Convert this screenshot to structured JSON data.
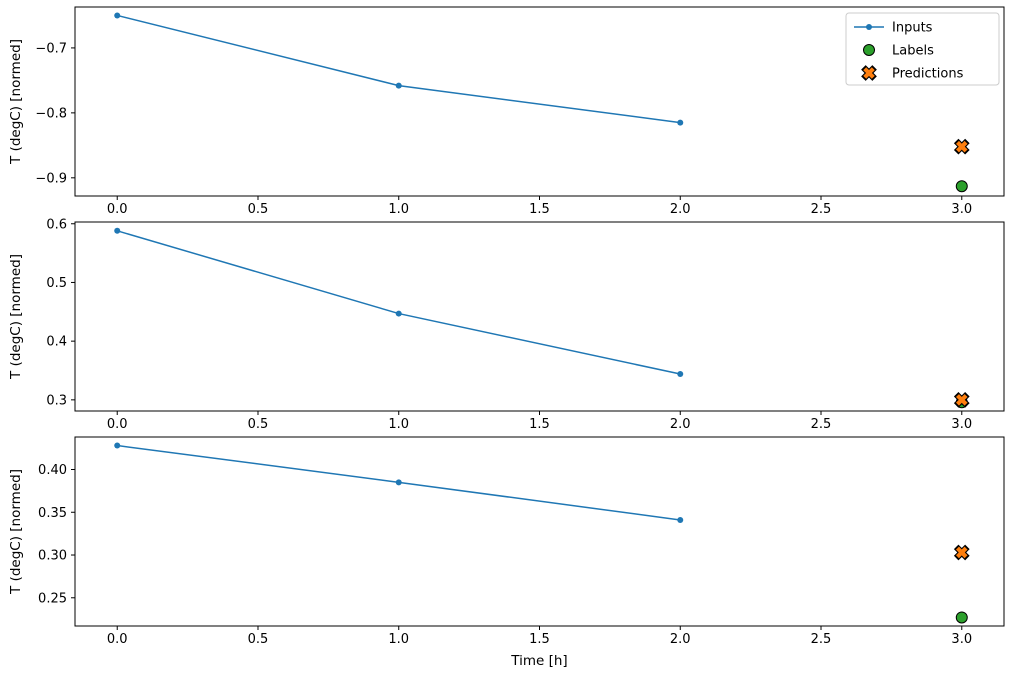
{
  "figure": {
    "background": "#ffffff",
    "xlabel": "Time [h]",
    "ylabel": "T (degC) [normed]",
    "colors": {
      "inputs": "#1f77b4",
      "labels": "#2ca02c",
      "predictions": "#ff7f0e",
      "marker_edge": "#000000",
      "axis": "#000000",
      "legend_border": "#cccccc"
    }
  },
  "legend": {
    "position": "upper-right",
    "entries": [
      {
        "label": "Inputs",
        "marker": "line-dot",
        "color": "#1f77b4"
      },
      {
        "label": "Labels",
        "marker": "circle",
        "color": "#2ca02c"
      },
      {
        "label": "Predictions",
        "marker": "X",
        "color": "#ff7f0e"
      }
    ]
  },
  "chart_data": [
    {
      "type": "line",
      "title": "",
      "xlabel": "",
      "ylabel": "T (degC) [normed]",
      "xlim": [
        -0.15,
        3.15
      ],
      "ylim": [
        -0.928,
        -0.637
      ],
      "xticks": [
        0.0,
        0.5,
        1.0,
        1.5,
        2.0,
        2.5,
        3.0
      ],
      "xtick_labels": [
        "0.0",
        "0.5",
        "1.0",
        "1.5",
        "2.0",
        "2.5",
        "3.0"
      ],
      "yticks": [
        -0.7,
        -0.8,
        -0.9
      ],
      "ytick_labels": [
        "−0.7",
        "−0.8",
        "−0.9"
      ],
      "grid": false,
      "legend": true,
      "series": [
        {
          "name": "Inputs",
          "type": "line",
          "x": [
            0,
            1,
            2
          ],
          "y": [
            -0.65,
            -0.758,
            -0.815
          ]
        },
        {
          "name": "Labels",
          "type": "scatter",
          "x": [
            3
          ],
          "y": [
            -0.913
          ]
        },
        {
          "name": "Predictions",
          "type": "scatter",
          "x": [
            3
          ],
          "y": [
            -0.852
          ]
        }
      ]
    },
    {
      "type": "line",
      "title": "",
      "xlabel": "",
      "ylabel": "T (degC) [normed]",
      "xlim": [
        -0.15,
        3.15
      ],
      "ylim": [
        0.281,
        0.603
      ],
      "xticks": [
        0.0,
        0.5,
        1.0,
        1.5,
        2.0,
        2.5,
        3.0
      ],
      "xtick_labels": [
        "0.0",
        "0.5",
        "1.0",
        "1.5",
        "2.0",
        "2.5",
        "3.0"
      ],
      "yticks": [
        0.3,
        0.4,
        0.5,
        0.6
      ],
      "ytick_labels": [
        "0.3",
        "0.4",
        "0.5",
        "0.6"
      ],
      "grid": false,
      "legend": false,
      "series": [
        {
          "name": "Inputs",
          "type": "line",
          "x": [
            0,
            1,
            2
          ],
          "y": [
            0.588,
            0.447,
            0.344
          ]
        },
        {
          "name": "Labels",
          "type": "scatter",
          "x": [
            3
          ],
          "y": [
            0.296
          ]
        },
        {
          "name": "Predictions",
          "type": "scatter",
          "x": [
            3
          ],
          "y": [
            0.3
          ]
        }
      ]
    },
    {
      "type": "line",
      "title": "",
      "xlabel": "Time [h]",
      "ylabel": "T (degC) [normed]",
      "xlim": [
        -0.15,
        3.15
      ],
      "ylim": [
        0.217,
        0.438
      ],
      "xticks": [
        0.0,
        0.5,
        1.0,
        1.5,
        2.0,
        2.5,
        3.0
      ],
      "xtick_labels": [
        "0.0",
        "0.5",
        "1.0",
        "1.5",
        "2.0",
        "2.5",
        "3.0"
      ],
      "yticks": [
        0.25,
        0.3,
        0.35,
        0.4
      ],
      "ytick_labels": [
        "0.25",
        "0.30",
        "0.35",
        "0.40"
      ],
      "grid": false,
      "legend": false,
      "series": [
        {
          "name": "Inputs",
          "type": "line",
          "x": [
            0,
            1,
            2
          ],
          "y": [
            0.428,
            0.385,
            0.341
          ]
        },
        {
          "name": "Labels",
          "type": "scatter",
          "x": [
            3
          ],
          "y": [
            0.227
          ]
        },
        {
          "name": "Predictions",
          "type": "scatter",
          "x": [
            3
          ],
          "y": [
            0.303
          ]
        }
      ]
    }
  ]
}
